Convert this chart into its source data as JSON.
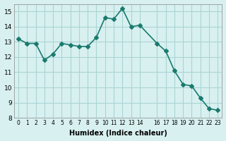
{
  "x": [
    0,
    1,
    2,
    3,
    4,
    5,
    6,
    7,
    8,
    9,
    10,
    11,
    12,
    13,
    14,
    16,
    17,
    18,
    19,
    20,
    21,
    22,
    23
  ],
  "y": [
    13.2,
    12.9,
    12.9,
    11.8,
    12.2,
    12.9,
    12.8,
    12.7,
    12.7,
    13.3,
    14.6,
    14.5,
    15.2,
    14.0,
    14.1,
    12.9,
    12.4,
    11.1,
    10.2,
    10.1,
    9.3,
    8.6,
    8.5
  ],
  "line_color": "#1a7a6e",
  "marker": "D",
  "marker_size": 3,
  "bg_color": "#d8f0f0",
  "grid_color": "#aad4d4",
  "xlabel": "Humidex (Indice chaleur)",
  "xlim": [
    -0.5,
    23.5
  ],
  "ylim": [
    8,
    15.5
  ],
  "yticks": [
    8,
    9,
    10,
    11,
    12,
    13,
    14,
    15
  ],
  "xticks": [
    0,
    1,
    2,
    3,
    4,
    5,
    6,
    7,
    8,
    9,
    10,
    11,
    12,
    13,
    14,
    16,
    17,
    18,
    19,
    20,
    21,
    22,
    23
  ],
  "xtick_labels": [
    "0",
    "1",
    "2",
    "3",
    "4",
    "5",
    "6",
    "7",
    "8",
    "9",
    "10",
    "11",
    "12",
    "13",
    "14",
    "16",
    "17",
    "18",
    "19",
    "20",
    "21",
    "22",
    "23"
  ]
}
